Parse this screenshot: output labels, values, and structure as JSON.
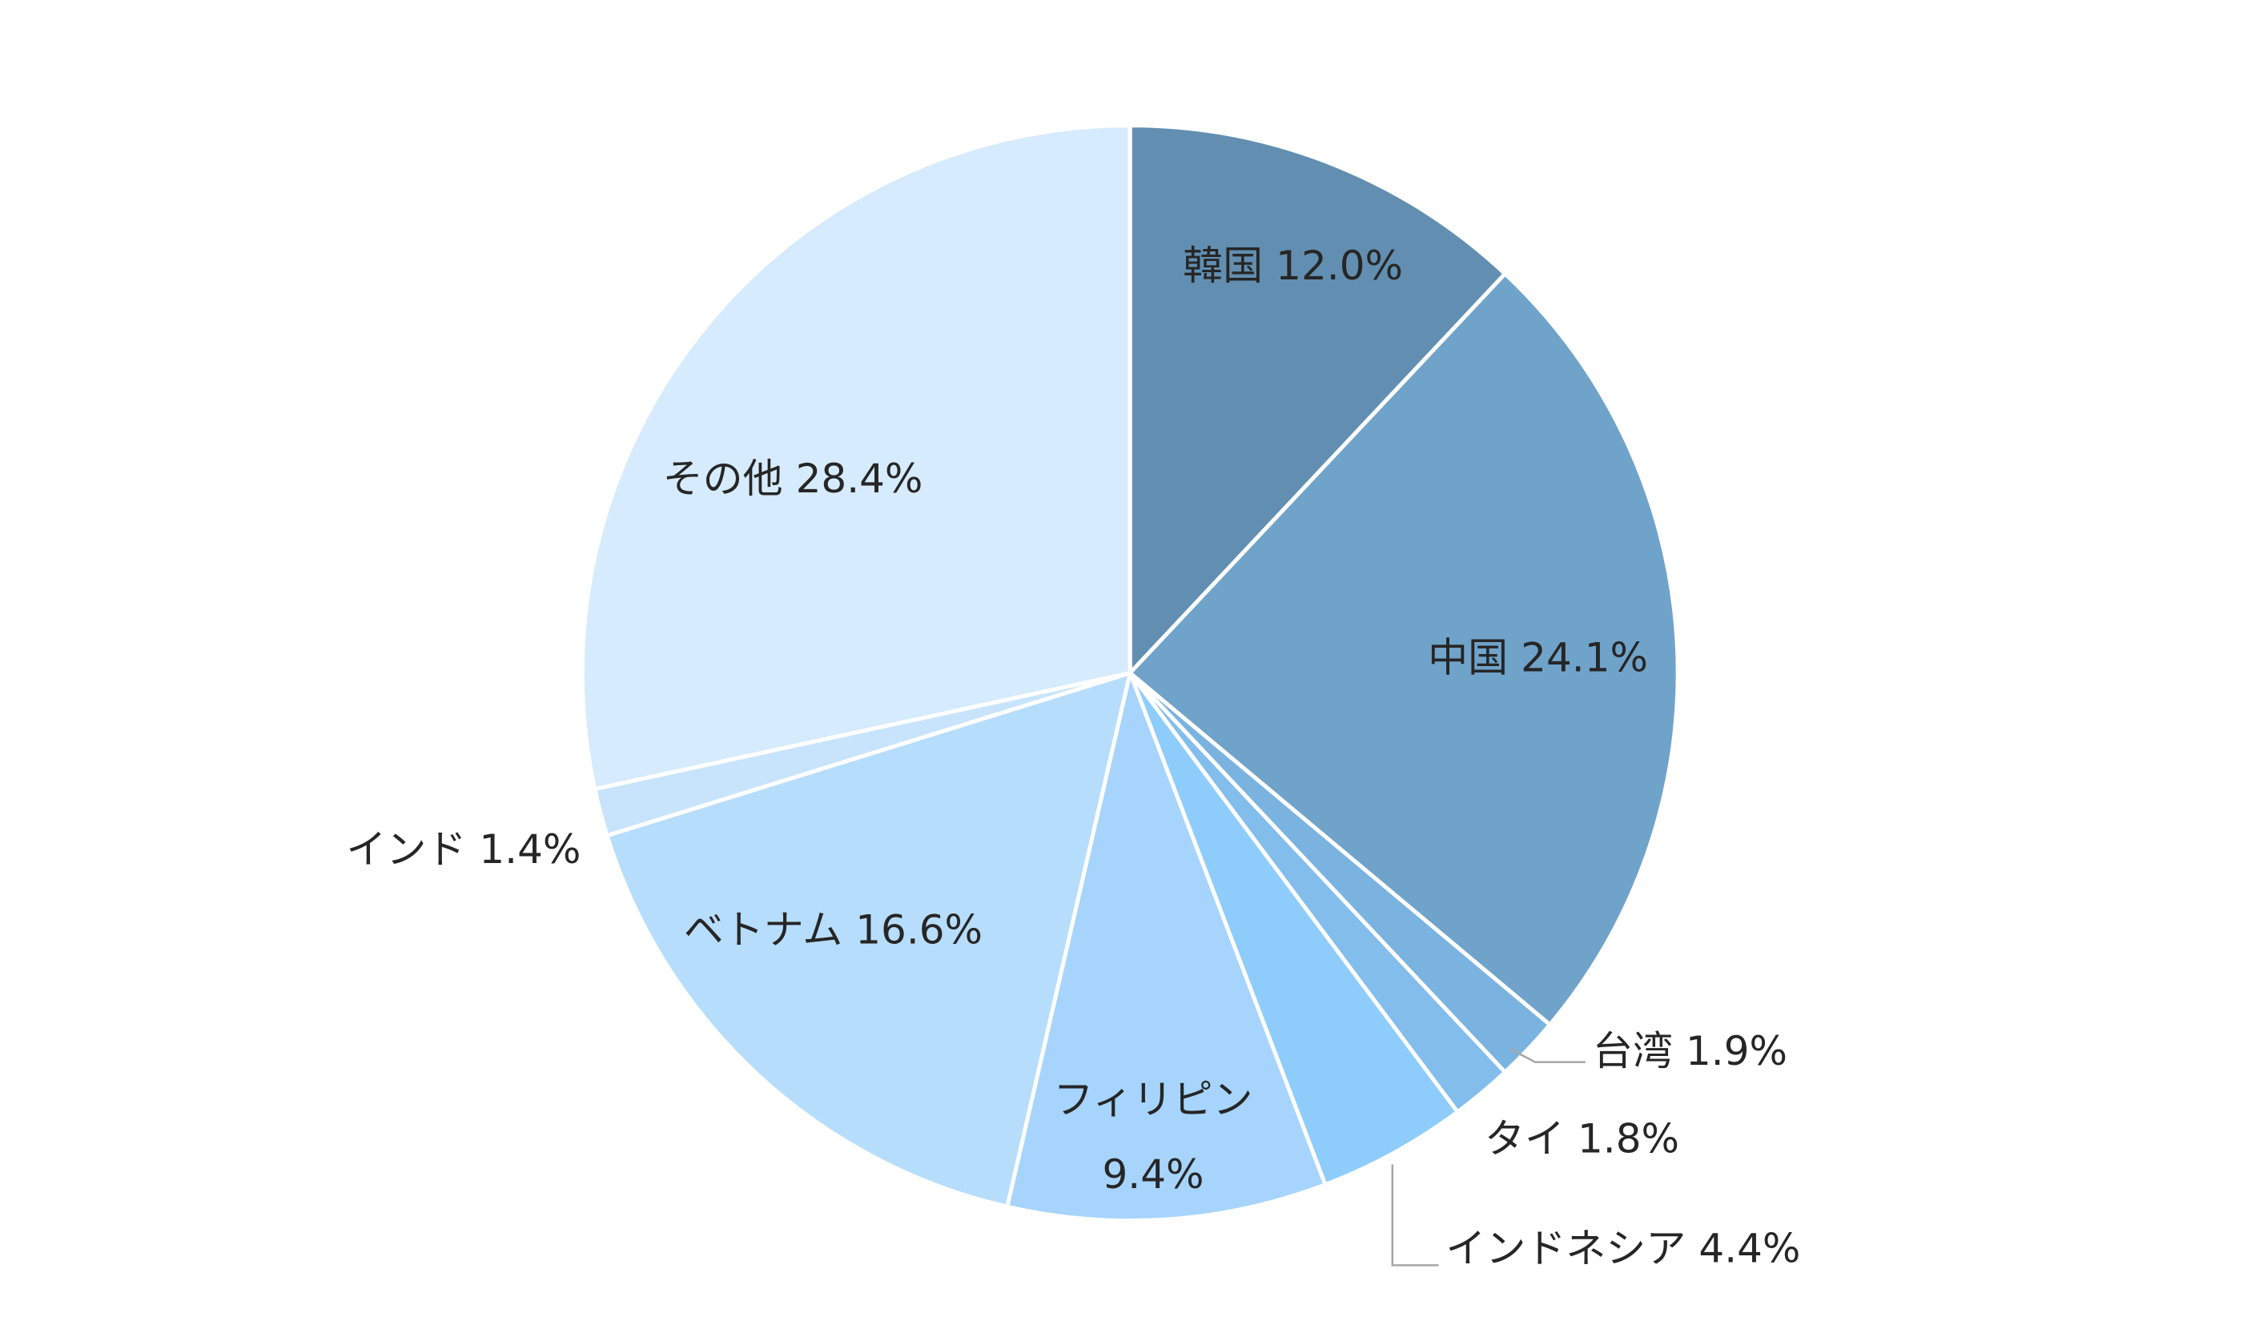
{
  "chart_data": {
    "type": "pie",
    "categories": [
      "韓国",
      "中国",
      "台湾",
      "タイ",
      "インドネシア",
      "フィリピン",
      "ベトナム",
      "インド",
      "その他"
    ],
    "values": [
      12.0,
      24.1,
      1.9,
      1.8,
      4.4,
      9.4,
      16.6,
      1.4,
      28.4
    ],
    "value_labels": [
      "12.0%",
      "24.1%",
      "1.9%",
      "1.8%",
      "4.4%",
      "9.4%",
      "16.6%",
      "1.4%",
      "28.4%"
    ],
    "colors": [
      "#628fb1",
      "#70a3c9",
      "#7ab3e0",
      "#82bdec",
      "#8ecdfb",
      "#a6d4fc",
      "#b7ddfc",
      "#c8e4fc",
      "#d6ebfd"
    ]
  }
}
